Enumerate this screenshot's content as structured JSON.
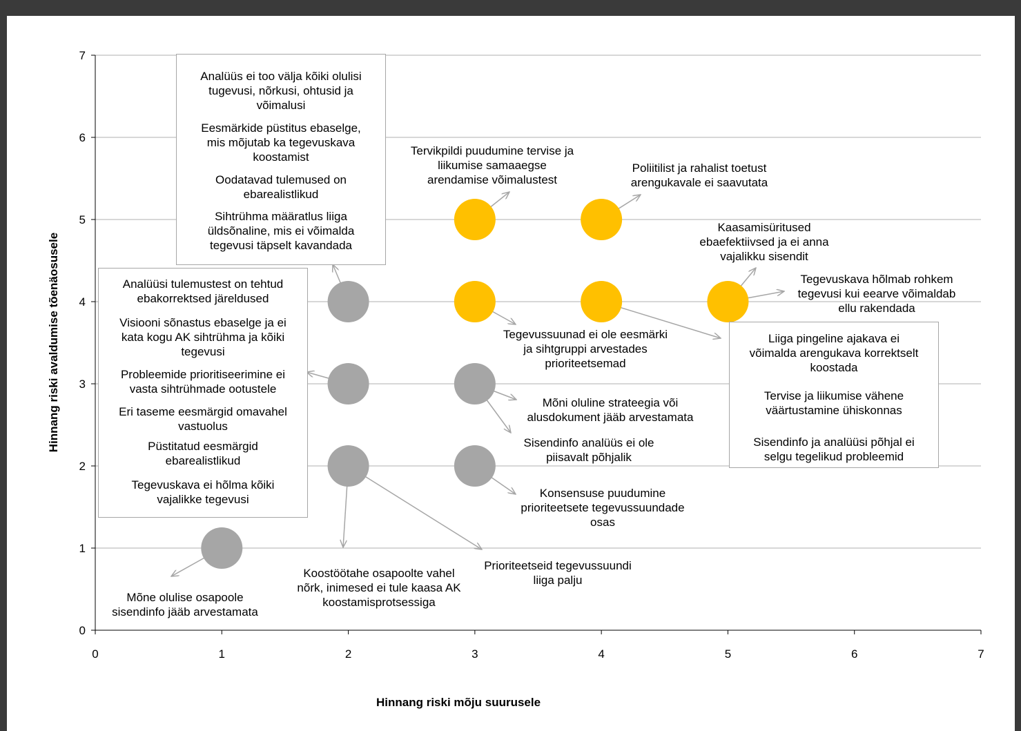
{
  "chart_data": {
    "type": "scatter",
    "xlabel": "Hinnang riski mõju suurusele",
    "ylabel": "Hinnang riski avaldumise tõenäosusele",
    "xlim": [
      0,
      7
    ],
    "ylim": [
      0,
      7
    ],
    "xticks": [
      "0",
      "1",
      "2",
      "3",
      "4",
      "5",
      "6",
      "7"
    ],
    "yticks": [
      "0",
      "1",
      "2",
      "3",
      "4",
      "5",
      "6",
      "7"
    ],
    "grid": "horizontal",
    "colors": {
      "high": "#ffc000",
      "low": "#a6a6a6"
    },
    "points": [
      {
        "x": 1,
        "y": 1,
        "color": "gray"
      },
      {
        "x": 2,
        "y": 2,
        "color": "gray"
      },
      {
        "x": 2,
        "y": 3,
        "color": "gray"
      },
      {
        "x": 2,
        "y": 4,
        "color": "gray"
      },
      {
        "x": 3,
        "y": 2,
        "color": "gray"
      },
      {
        "x": 3,
        "y": 3,
        "color": "gray"
      },
      {
        "x": 3,
        "y": 4,
        "color": "yellow"
      },
      {
        "x": 3,
        "y": 5,
        "color": "yellow"
      },
      {
        "x": 4,
        "y": 4,
        "color": "yellow"
      },
      {
        "x": 4,
        "y": 5,
        "color": "yellow"
      },
      {
        "x": 5,
        "y": 4,
        "color": "yellow"
      }
    ],
    "boxes": [
      {
        "name": "top-box",
        "items": [
          [
            "Analüüs ei too välja kõiki olulisi",
            "tugevusi, nõrkusi, ohtusid ja",
            "võimalusi"
          ],
          [
            "Eesmärkide püstitus ebaselge,",
            "mis mõjutab ka tegevuskava",
            "koostamist"
          ],
          [
            "Oodatavad tulemused on",
            "ebarealistlikud"
          ],
          [
            "Sihtrühma määratlus liiga",
            "üldsõnaline, mis ei võimalda",
            "tegevusi täpselt kavandada"
          ]
        ]
      },
      {
        "name": "left-box",
        "items": [
          [
            "Analüüsi tulemustest on tehtud",
            "ebakorrektsed järeldused"
          ],
          [
            "Visiooni sõnastus ebaselge ja ei",
            "kata kogu AK sihtrühma ja kõiki",
            "tegevusi"
          ],
          [
            "Probleemide prioritiseerimine ei",
            "vasta sihtrühmade ootustele"
          ],
          [
            "Eri taseme eesmärgid omavahel",
            "vastuolus"
          ],
          [
            "Püstitatud eesmärgid",
            "ebarealistlikud"
          ],
          [
            "Tegevuskava ei hõlma kõiki",
            "vajalikke tegevusi"
          ]
        ]
      },
      {
        "name": "right-box",
        "items": [
          [
            "Liiga pingeline ajakava ei",
            "võimalda arengukava korrektselt",
            "koostada"
          ],
          [
            "Tervise ja liikumise vähene",
            "väärtustamine ühiskonnas"
          ],
          [
            "Sisendinfo ja analüüsi põhjal ei",
            "selgu tegelikud probleemid"
          ]
        ]
      }
    ],
    "labels": [
      {
        "name": "label-tervikpildi",
        "lines": [
          "Tervikpildi puudumine tervise ja",
          "liikumise samaaegse",
          "arendamise võimalustest"
        ]
      },
      {
        "name": "label-poliitilist",
        "lines": [
          "Poliitilist ja rahalist toetust",
          "arengukavale ei saavutata"
        ]
      },
      {
        "name": "label-kaasamis",
        "lines": [
          "Kaasamisüritused",
          "ebaefektiivsed ja ei anna",
          "vajalikku sisendit"
        ]
      },
      {
        "name": "label-tegevuskava-rohkem",
        "lines": [
          "Tegevuskava hõlmab rohkem",
          "tegevusi kui eearve võimaldab",
          "ellu rakendada"
        ]
      },
      {
        "name": "label-tegevussuunad",
        "lines": [
          "Tegevussuunad ei ole eesmärki",
          "ja sihtgruppi arvestades",
          "prioriteetsemad"
        ]
      },
      {
        "name": "label-strateegia",
        "lines": [
          "Mõni oluline strateegia või",
          "alusdokument jääb arvestamata"
        ]
      },
      {
        "name": "label-sisendinfo-analuus",
        "lines": [
          "Sisendinfo analüüs ei ole",
          "piisavalt põhjalik"
        ]
      },
      {
        "name": "label-konsensus",
        "lines": [
          "Konsensuse puudumine",
          "prioriteetsete tegevussuundade",
          "osas"
        ]
      },
      {
        "name": "label-prioriteetseid",
        "lines": [
          "Prioriteetseid tegevussuundi",
          "liiga palju"
        ]
      },
      {
        "name": "label-koostootahe",
        "lines": [
          "Koostöötahe osapoolte vahel",
          "nõrk, inimesed ei tule kaasa AK",
          "koostamisprotsessiga"
        ]
      },
      {
        "name": "label-osapoole",
        "lines": [
          "Mõne olulise osapoole",
          "sisendinfo jääb arvestamata"
        ]
      }
    ]
  }
}
